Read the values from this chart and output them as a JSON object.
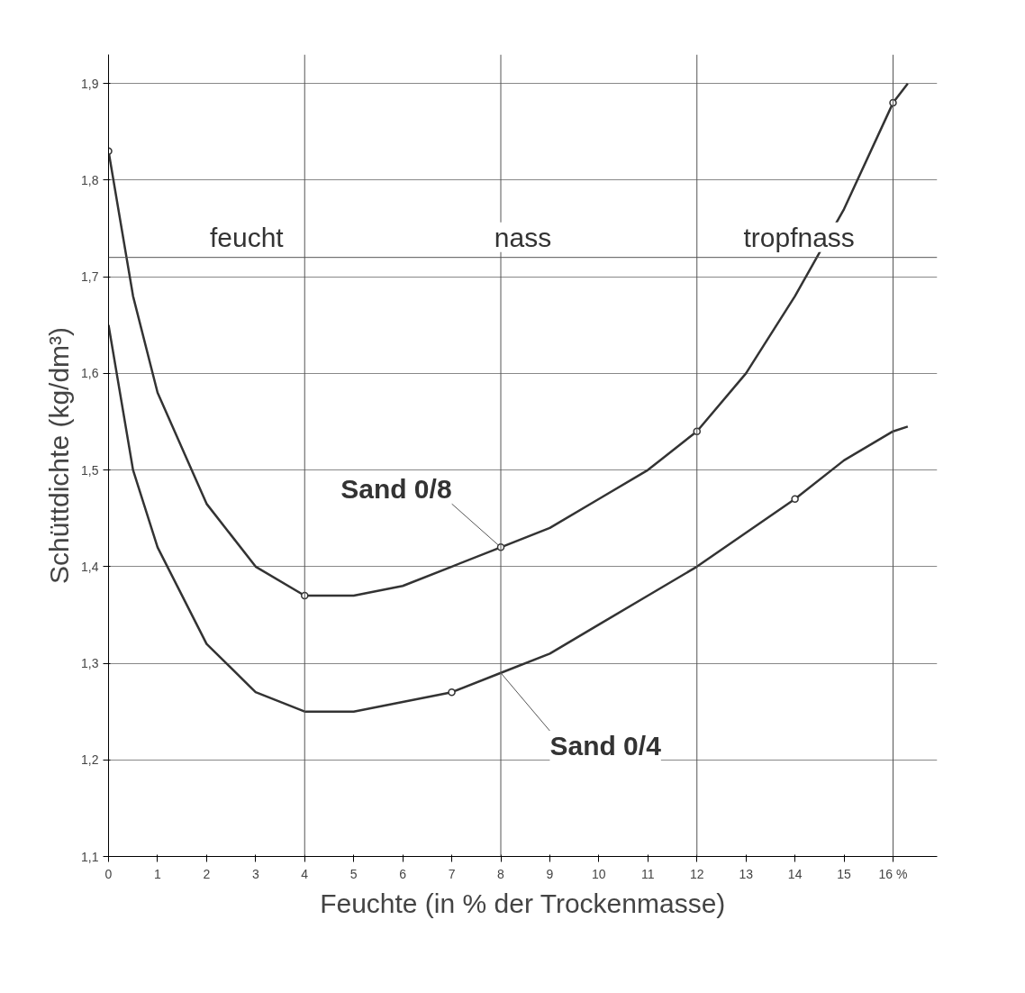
{
  "chart_data": {
    "type": "line",
    "xlabel": "Feuchte (in % der Trockenmasse)",
    "ylabel": "Schüttdichte (kg/dm³)",
    "xlim": [
      0,
      16.9
    ],
    "xticks": [
      0,
      1,
      2,
      3,
      4,
      5,
      6,
      7,
      8,
      9,
      10,
      11,
      12,
      13,
      14,
      15,
      {
        "value": 16,
        "label": "16 %"
      }
    ],
    "ylim": [
      1.1,
      1.93
    ],
    "yticks": [
      {
        "value": 1.1,
        "label": "1,1"
      },
      {
        "value": 1.2,
        "label": "1,2"
      },
      {
        "value": 1.3,
        "label": "1,3"
      },
      {
        "value": 1.4,
        "label": "1,4"
      },
      {
        "value": 1.5,
        "label": "1,5"
      },
      {
        "value": 1.6,
        "label": "1,6"
      },
      {
        "value": 1.7,
        "label": "1,7"
      },
      {
        "value": 1.8,
        "label": "1,8"
      },
      {
        "value": 1.9,
        "label": "1,9"
      }
    ],
    "grid": "y",
    "marker": "none",
    "line_style": "solid",
    "series": [
      {
        "name": "Sand 0/8",
        "color": "#333333",
        "x": [
          0,
          0.5,
          1,
          2,
          3,
          4,
          5,
          6,
          7,
          8,
          9,
          10,
          11,
          12,
          13,
          14,
          15,
          16,
          16.3
        ],
        "values": [
          1.83,
          1.68,
          1.58,
          1.465,
          1.4,
          1.37,
          1.37,
          1.38,
          1.4,
          1.42,
          1.44,
          1.47,
          1.5,
          1.54,
          1.6,
          1.68,
          1.77,
          1.88,
          1.9
        ]
      },
      {
        "name": "Sand 0/4",
        "color": "#333333",
        "x": [
          0,
          0.5,
          1,
          2,
          3,
          4,
          5,
          6,
          7,
          8,
          9,
          10,
          11,
          12,
          13,
          14,
          15,
          16,
          16.3
        ],
        "values": [
          1.65,
          1.5,
          1.42,
          1.32,
          1.27,
          1.25,
          1.25,
          1.26,
          1.27,
          1.29,
          1.31,
          1.34,
          1.37,
          1.4,
          1.435,
          1.47,
          1.51,
          1.54,
          1.545
        ]
      },
      {
        "type": "scatter",
        "color": "#333333",
        "marker": "circle",
        "x": [
          0,
          4,
          8,
          12,
          16
        ],
        "values": [
          1.83,
          1.37,
          1.42,
          1.54,
          1.88
        ]
      },
      {
        "type": "scatter",
        "color": "#333333",
        "marker": "circle",
        "x": [
          7,
          14
        ],
        "values": [
          1.27,
          1.47
        ]
      }
    ],
    "ref_lines": [
      {
        "axis": "y",
        "value": 1.72
      },
      {
        "axis": "x",
        "value": 4
      },
      {
        "axis": "x",
        "value": 8
      },
      {
        "axis": "x",
        "value": 12
      },
      {
        "axis": "x",
        "value": 16
      }
    ],
    "annotations": [
      "feucht",
      "nass",
      "tropfnass"
    ]
  }
}
